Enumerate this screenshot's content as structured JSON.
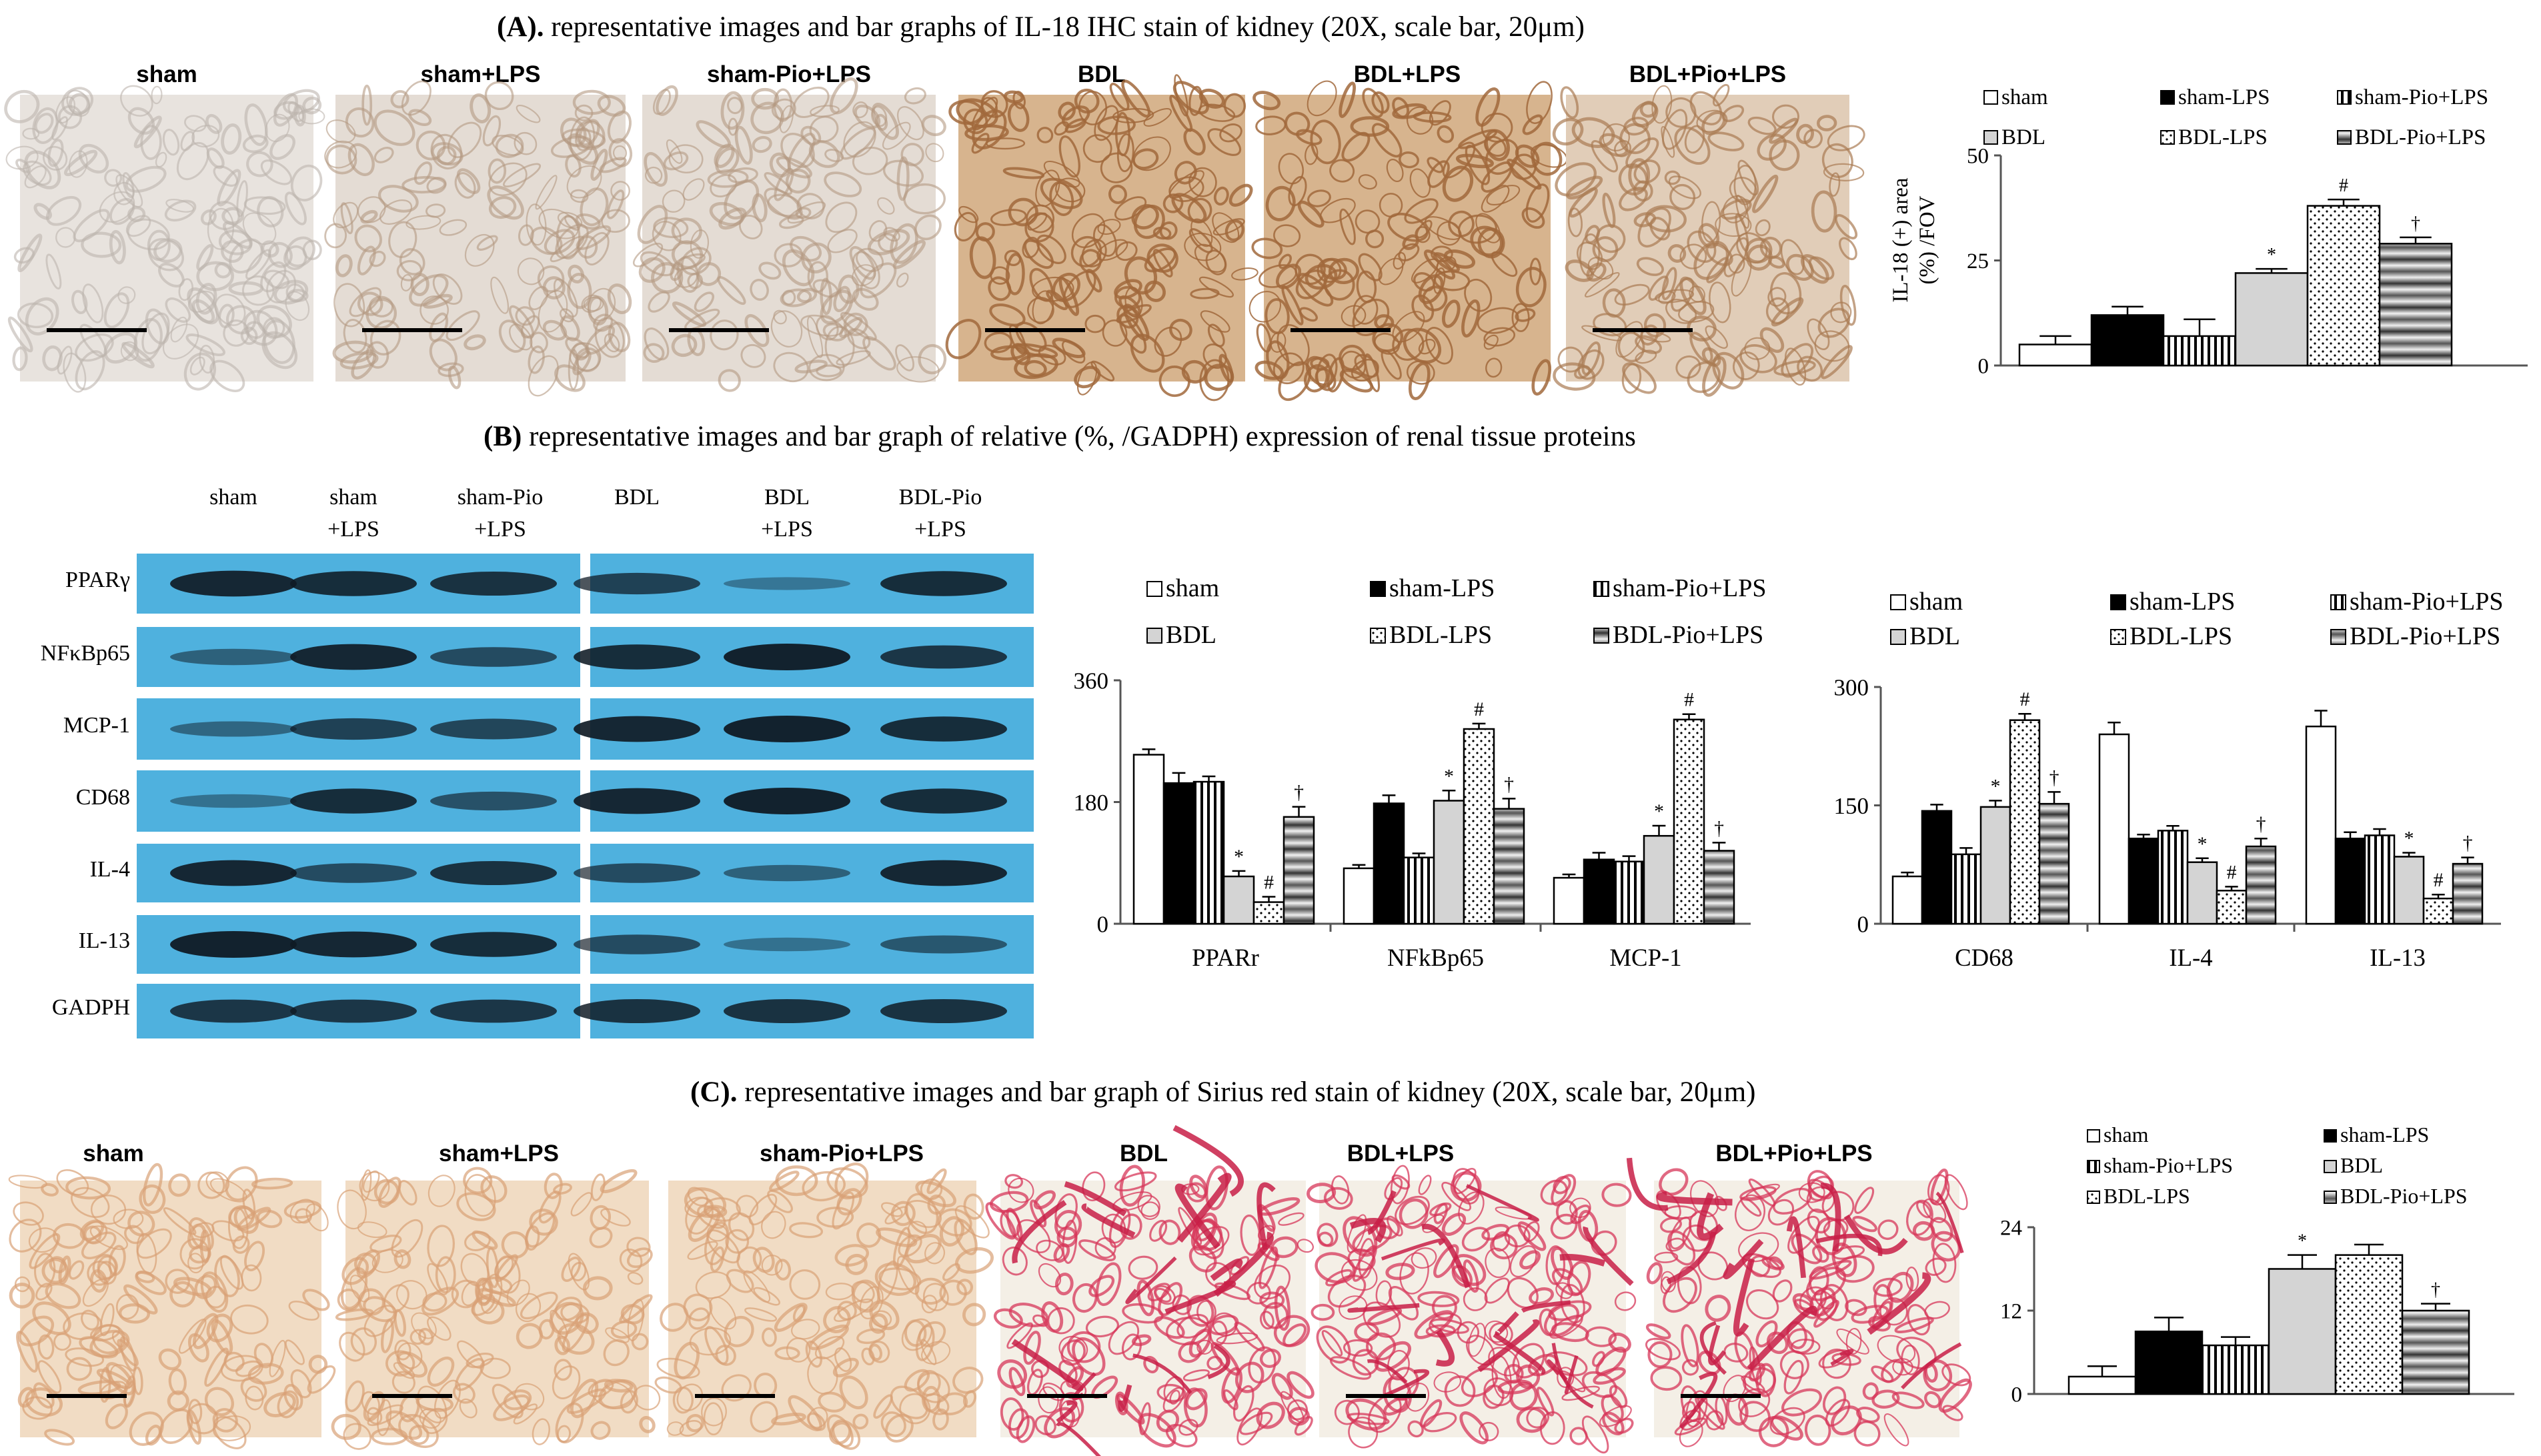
{
  "colors": {
    "ihc_bg": "#ece6df",
    "ihc_brown": "#a06a3e",
    "sirius_bg": "#f3dfc8",
    "sirius_red": "#d23a55",
    "blot_blue": "#4fb1de",
    "blot_band": "#111820"
  },
  "panelA": {
    "title_prefix": "(A).",
    "title_rest": " representative images and bar graphs of IL-18 IHC stain of kidney (20X, scale bar, 20μm)",
    "images": [
      {
        "label": "sham",
        "stain": "light"
      },
      {
        "label": "sham+LPS",
        "stain": "light-brown"
      },
      {
        "label": "sham-Pio+LPS",
        "stain": "light-brown"
      },
      {
        "label": "BDL",
        "stain": "brown"
      },
      {
        "label": "BDL+LPS",
        "stain": "brown"
      },
      {
        "label": "BDL+Pio+LPS",
        "stain": "medium"
      }
    ],
    "legend": [
      "sham",
      "sham-LPS",
      "sham-Pio+LPS",
      "BDL",
      "BDL-LPS",
      "BDL-Pio+LPS"
    ]
  },
  "panelB": {
    "title_prefix": "(B)",
    "title_rest": " representative images and bar graph of relative (%, /GADPH) expression of renal tissue proteins",
    "lane_headers": [
      {
        "line1": "sham",
        "line2": ""
      },
      {
        "line1": "sham",
        "line2": "+LPS"
      },
      {
        "line1": "sham-Pio",
        "line2": "+LPS"
      },
      {
        "line1": "BDL",
        "line2": ""
      },
      {
        "line1": "BDL",
        "line2": "+LPS"
      },
      {
        "line1": "BDL-Pio",
        "line2": "+LPS"
      }
    ],
    "rows": [
      "PPARγ",
      "NFκBp65",
      "MCP-1",
      "CD68",
      "IL-4",
      "IL-13",
      "GADPH"
    ],
    "legend1": [
      "sham",
      "sham-LPS",
      "sham-Pio+LPS",
      "BDL",
      "BDL-LPS",
      "BDL-Pio+LPS"
    ],
    "legend2": [
      "sham",
      "sham-LPS",
      "sham-Pio+LPS",
      "BDL",
      "BDL-LPS",
      "BDL-Pio+LPS"
    ]
  },
  "panelC": {
    "title_prefix": "(C).",
    "title_rest": " representative images and bar graph of Sirius red stain of kidney (20X, scale bar, 20μm)",
    "images": [
      {
        "label": "sham"
      },
      {
        "label": "sham+LPS"
      },
      {
        "label": "sham-Pio+LPS"
      },
      {
        "label": "BDL"
      },
      {
        "label": "BDL+LPS"
      },
      {
        "label": "BDL+Pio+LPS"
      }
    ],
    "legend": [
      "sham",
      "sham-LPS",
      "sham-Pio+LPS",
      "BDL",
      "BDL-LPS",
      "BDL-Pio+LPS"
    ]
  },
  "chart_data": [
    {
      "id": "A",
      "type": "bar",
      "ylabel": "IL-18 (+) area (%) /FOV",
      "ylim": [
        0,
        50
      ],
      "yticks": [
        0,
        25,
        50
      ],
      "series": [
        {
          "name": "sham",
          "values": [
            5
          ],
          "err": [
            2
          ]
        },
        {
          "name": "sham-LPS",
          "values": [
            12
          ],
          "err": [
            2
          ]
        },
        {
          "name": "sham-Pio+LPS",
          "values": [
            7
          ],
          "err": [
            4
          ]
        },
        {
          "name": "BDL",
          "values": [
            22
          ],
          "err": [
            1
          ],
          "mark": "*"
        },
        {
          "name": "BDL-LPS",
          "values": [
            38
          ],
          "err": [
            1.5
          ],
          "mark": "#"
        },
        {
          "name": "BDL-Pio+LPS",
          "values": [
            29
          ],
          "err": [
            1.5
          ],
          "mark": "†"
        }
      ]
    },
    {
      "id": "B1",
      "type": "bar",
      "categories": [
        "PPARr",
        "NFkBp65",
        "MCP-1"
      ],
      "ylim": [
        0,
        360
      ],
      "yticks": [
        0,
        180,
        360
      ],
      "series": [
        {
          "name": "sham",
          "values": [
            250,
            82,
            68
          ],
          "err": [
            8,
            5,
            5
          ],
          "marks": [
            "",
            "",
            ""
          ]
        },
        {
          "name": "sham-LPS",
          "values": [
            208,
            178,
            95
          ],
          "err": [
            15,
            12,
            10
          ],
          "marks": [
            "",
            "",
            ""
          ]
        },
        {
          "name": "sham-Pio+LPS",
          "values": [
            210,
            98,
            92
          ],
          "err": [
            8,
            6,
            8
          ],
          "marks": [
            "",
            "",
            ""
          ]
        },
        {
          "name": "BDL",
          "values": [
            70,
            182,
            130
          ],
          "err": [
            8,
            15,
            15
          ],
          "marks": [
            "*",
            "*",
            "*"
          ]
        },
        {
          "name": "BDL-LPS",
          "values": [
            32,
            288,
            302
          ],
          "err": [
            8,
            8,
            8
          ],
          "marks": [
            "#",
            "#",
            "#"
          ]
        },
        {
          "name": "BDL-Pio+LPS",
          "values": [
            158,
            170,
            108
          ],
          "err": [
            15,
            15,
            12
          ],
          "marks": [
            "†",
            "†",
            "†"
          ]
        }
      ]
    },
    {
      "id": "B2",
      "type": "bar",
      "categories": [
        "CD68",
        "IL-4",
        "IL-13"
      ],
      "ylim": [
        0,
        300
      ],
      "yticks": [
        0,
        150,
        300
      ],
      "series": [
        {
          "name": "sham",
          "values": [
            60,
            240,
            250
          ],
          "err": [
            5,
            15,
            20
          ],
          "marks": [
            "",
            "",
            ""
          ]
        },
        {
          "name": "sham-LPS",
          "values": [
            143,
            108,
            108
          ],
          "err": [
            8,
            5,
            8
          ],
          "marks": [
            "",
            "",
            ""
          ]
        },
        {
          "name": "sham-Pio+LPS",
          "values": [
            88,
            118,
            112
          ],
          "err": [
            8,
            6,
            8
          ],
          "marks": [
            "",
            "",
            ""
          ]
        },
        {
          "name": "BDL",
          "values": [
            148,
            78,
            85
          ],
          "err": [
            8,
            5,
            5
          ],
          "marks": [
            "*",
            "*",
            "*"
          ]
        },
        {
          "name": "BDL-LPS",
          "values": [
            258,
            42,
            32
          ],
          "err": [
            8,
            5,
            5
          ],
          "marks": [
            "#",
            "#",
            "#"
          ]
        },
        {
          "name": "BDL-Pio+LPS",
          "values": [
            152,
            98,
            76
          ],
          "err": [
            15,
            10,
            8
          ],
          "marks": [
            "†",
            "†",
            "†"
          ]
        }
      ]
    },
    {
      "id": "C",
      "type": "bar",
      "ylim": [
        0,
        24
      ],
      "yticks": [
        0,
        12,
        24
      ],
      "series": [
        {
          "name": "sham",
          "values": [
            2.5
          ],
          "err": [
            1.5
          ]
        },
        {
          "name": "sham-LPS",
          "values": [
            9
          ],
          "err": [
            2
          ]
        },
        {
          "name": "sham-Pio+LPS",
          "values": [
            7
          ],
          "err": [
            1.2
          ]
        },
        {
          "name": "BDL",
          "values": [
            18
          ],
          "err": [
            2
          ],
          "mark": "*"
        },
        {
          "name": "BDL-LPS",
          "values": [
            20
          ],
          "err": [
            1.5
          ],
          "mark": ""
        },
        {
          "name": "BDL-Pio+LPS",
          "values": [
            12
          ],
          "err": [
            1
          ],
          "mark": "†"
        }
      ]
    }
  ]
}
